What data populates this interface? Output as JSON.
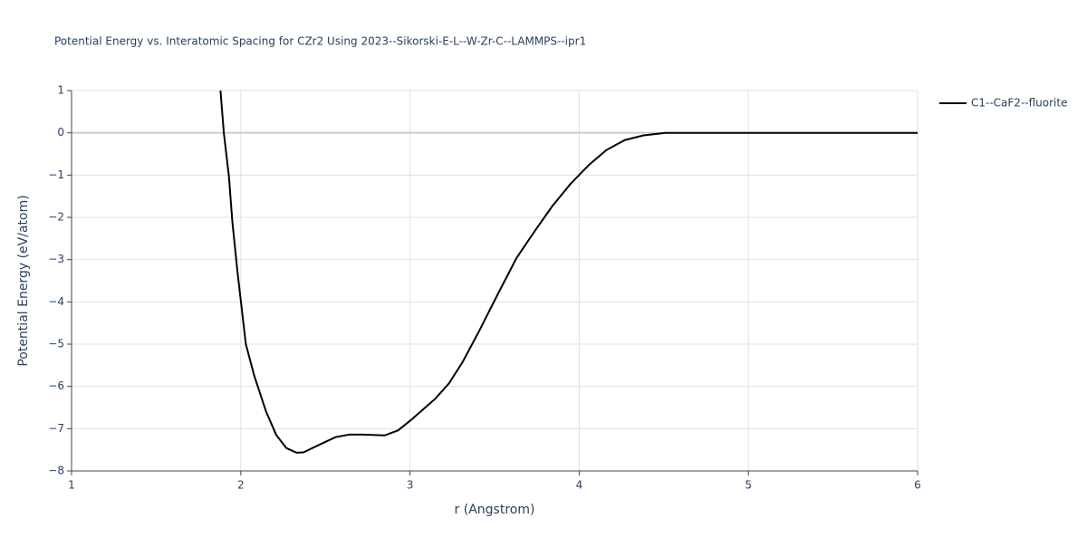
{
  "chart_data": {
    "type": "line",
    "title": "Potential Energy vs. Interatomic Spacing for CZr2 Using 2023--Sikorski-E-L--W-Zr-C--LAMMPS--ipr1",
    "x_label": "r (Angstrom)",
    "y_label": "Potential Energy (eV/atom)",
    "x": [
      1.88,
      1.9,
      1.93,
      1.95,
      1.98,
      2.03,
      2.08,
      2.15,
      2.21,
      2.27,
      2.33,
      2.37,
      2.48,
      2.56,
      2.64,
      2.72,
      2.85,
      2.93,
      3.01,
      3.15,
      3.23,
      3.31,
      3.41,
      3.52,
      3.63,
      3.74,
      3.84,
      3.95,
      4.06,
      4.16,
      4.27,
      4.38,
      4.51,
      4.6,
      5,
      5.5,
      6
    ],
    "series": [
      {
        "name": "C1--CaF2--fluorite",
        "color": "#000000",
        "values": [
          1,
          0,
          -1.03,
          -2.1,
          -3.28,
          -5,
          -5.75,
          -6.6,
          -7.15,
          -7.46,
          -7.57,
          -7.56,
          -7.35,
          -7.2,
          -7.14,
          -7.14,
          -7.16,
          -7.04,
          -6.78,
          -6.29,
          -5.93,
          -5.43,
          -4.68,
          -3.81,
          -2.96,
          -2.31,
          -1.74,
          -1.2,
          -0.75,
          -0.41,
          -0.17,
          -0.06,
          0,
          0,
          0,
          0,
          0
        ]
      }
    ],
    "xlim": [
      1,
      6
    ],
    "xticks": [
      1,
      2,
      3,
      4,
      5,
      6
    ],
    "ylim": [
      -8,
      1
    ],
    "yticks": [
      {
        "value": -8,
        "label": "−8"
      },
      {
        "value": -7,
        "label": "−7"
      },
      {
        "value": -6,
        "label": "−6"
      },
      {
        "value": -5,
        "label": "−5"
      },
      {
        "value": -4,
        "label": "−4"
      },
      {
        "value": -3,
        "label": "−3"
      },
      {
        "value": -2,
        "label": "−2"
      },
      {
        "value": -1,
        "label": "−1"
      },
      0,
      1
    ],
    "grid": true,
    "legend": "top-right"
  }
}
